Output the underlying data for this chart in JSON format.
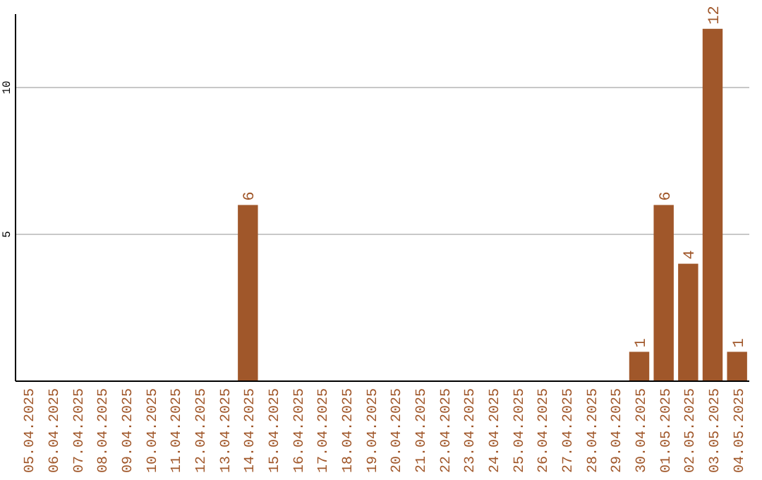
{
  "chart_data": {
    "type": "bar",
    "categories": [
      "05.04.2025",
      "06.04.2025",
      "07.04.2025",
      "08.04.2025",
      "09.04.2025",
      "10.04.2025",
      "11.04.2025",
      "12.04.2025",
      "13.04.2025",
      "14.04.2025",
      "15.04.2025",
      "16.04.2025",
      "17.04.2025",
      "18.04.2025",
      "19.04.2025",
      "20.04.2025",
      "21.04.2025",
      "22.04.2025",
      "23.04.2025",
      "24.04.2025",
      "25.04.2025",
      "26.04.2025",
      "27.04.2025",
      "28.04.2025",
      "29.04.2025",
      "30.04.2025",
      "01.05.2025",
      "02.05.2025",
      "03.05.2025",
      "04.05.2025"
    ],
    "values": [
      0,
      0,
      0,
      0,
      0,
      0,
      0,
      0,
      0,
      6,
      0,
      0,
      0,
      0,
      0,
      0,
      0,
      0,
      0,
      0,
      0,
      0,
      0,
      0,
      0,
      1,
      6,
      4,
      12,
      1
    ],
    "value_labels": [
      null,
      null,
      null,
      null,
      null,
      null,
      null,
      null,
      null,
      "6",
      null,
      null,
      null,
      null,
      null,
      null,
      null,
      null,
      null,
      null,
      null,
      null,
      null,
      null,
      null,
      "1",
      "6",
      "4",
      "12",
      "1"
    ],
    "color": "#a0572a",
    "ylim": [
      0,
      12.5
    ],
    "yticks": [
      5,
      10
    ],
    "grid": "y"
  }
}
